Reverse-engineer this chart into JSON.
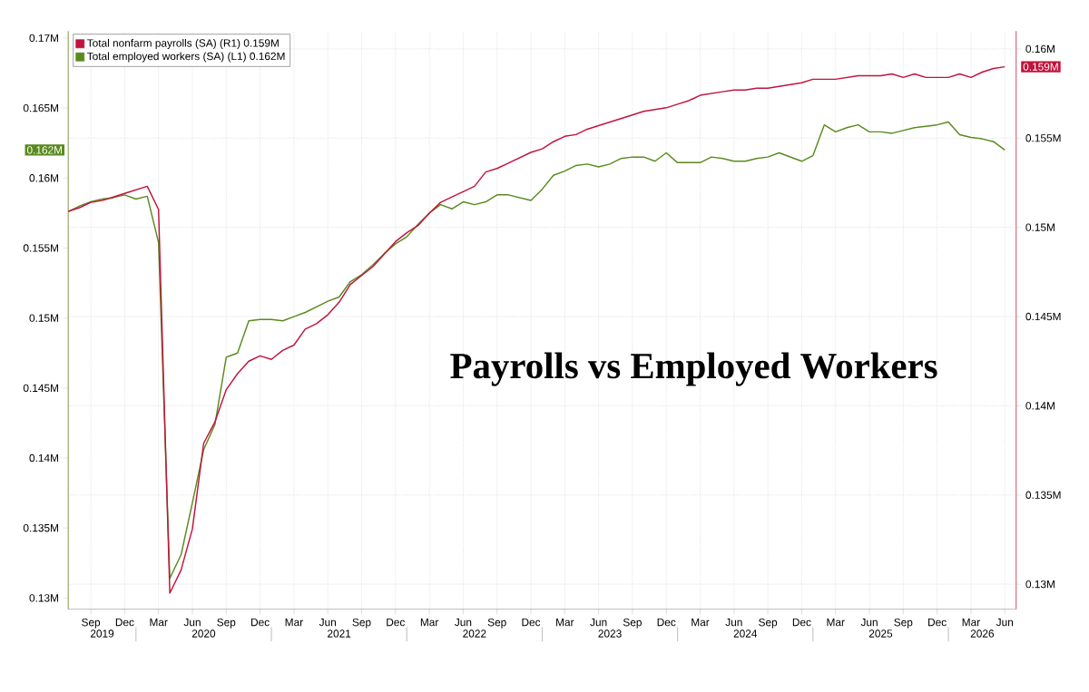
{
  "chart_data": {
    "type": "line",
    "title": "Payrolls vs Employed Workers",
    "x": [
      "2019-07",
      "2019-08",
      "2019-09",
      "2019-10",
      "2019-11",
      "2019-12",
      "2020-01",
      "2020-02",
      "2020-03",
      "2020-04",
      "2020-05",
      "2020-06",
      "2020-07",
      "2020-08",
      "2020-09",
      "2020-10",
      "2020-11",
      "2020-12",
      "2021-01",
      "2021-02",
      "2021-03",
      "2021-04",
      "2021-05",
      "2021-06",
      "2021-07",
      "2021-08",
      "2021-09",
      "2021-10",
      "2021-11",
      "2021-12",
      "2022-01",
      "2022-02",
      "2022-03",
      "2022-04",
      "2022-05",
      "2022-06",
      "2022-07",
      "2022-08",
      "2022-09",
      "2022-10",
      "2022-11",
      "2022-12",
      "2023-01",
      "2023-02",
      "2023-03",
      "2023-04",
      "2023-05",
      "2023-06",
      "2023-07",
      "2023-08",
      "2023-09",
      "2023-10",
      "2023-11",
      "2023-12",
      "2024-01",
      "2024-02",
      "2024-03",
      "2024-04",
      "2024-05",
      "2024-06",
      "2024-07",
      "2024-08",
      "2024-09",
      "2024-10",
      "2024-11",
      "2024-12",
      "2025-01",
      "2025-02",
      "2025-03",
      "2025-04",
      "2025-05",
      "2025-06",
      "2025-07",
      "2025-08",
      "2025-09",
      "2025-10",
      "2025-11",
      "2025-12",
      "2026-01",
      "2026-02",
      "2026-03",
      "2026-04",
      "2026-05",
      "2026-06"
    ],
    "series": [
      {
        "name": "Total nonfarm payrolls (SA) (R1) 0.159M",
        "color": "#c0143c",
        "axis": "y2",
        "values": [
          0.1509,
          0.1511,
          0.1514,
          0.1515,
          0.1517,
          0.1519,
          0.1521,
          0.1523,
          0.151,
          0.1295,
          0.1308,
          0.1331,
          0.1379,
          0.1391,
          0.1409,
          0.1418,
          0.1425,
          0.1428,
          0.1426,
          0.1431,
          0.1434,
          0.1443,
          0.1446,
          0.1451,
          0.1458,
          0.1468,
          0.1473,
          0.1478,
          0.1485,
          0.1492,
          0.1497,
          0.1501,
          0.1508,
          0.1514,
          0.1517,
          0.152,
          0.1523,
          0.1531,
          0.1533,
          0.1536,
          0.1539,
          0.1542,
          0.1544,
          0.1548,
          0.1551,
          0.1552,
          0.1555,
          0.1557,
          0.1559,
          0.1561,
          0.1563,
          0.1565,
          0.1566,
          0.1567,
          0.1569,
          0.1571,
          0.1574,
          0.1575,
          0.1576,
          0.1577,
          0.1577,
          0.1578,
          0.1578,
          0.1579,
          0.158,
          0.1581,
          0.1583,
          0.1583,
          0.1583,
          0.1584,
          0.1585,
          0.1585,
          0.1585,
          0.1586,
          0.1584,
          0.1586,
          0.1584,
          0.1584,
          0.1584,
          0.1586,
          0.1584,
          0.1587,
          0.1589,
          0.159
        ],
        "value_labels": [
          null,
          null,
          null,
          null,
          null,
          null,
          null,
          null,
          null,
          null,
          null,
          null,
          null,
          null,
          null,
          null,
          null,
          null,
          null,
          null,
          null,
          null,
          null,
          null,
          null,
          null,
          null,
          null,
          null,
          null,
          null,
          null,
          null,
          null,
          null,
          null,
          null,
          null,
          null,
          null,
          null,
          null,
          null,
          null,
          null,
          null,
          null,
          null,
          null,
          null,
          null,
          null,
          null,
          null,
          null,
          null,
          null,
          null,
          null,
          null,
          null,
          null,
          null,
          null,
          null,
          null,
          null,
          null,
          null,
          null,
          null,
          null,
          null,
          null,
          null,
          null,
          null,
          null,
          null,
          null,
          null,
          null,
          null,
          "0.159M"
        ]
      },
      {
        "name": "Total employed workers (SA) (L1) 0.162M",
        "color": "#5a8a1e",
        "values": [
          0.1576,
          0.158,
          0.1583,
          0.1585,
          0.1586,
          0.1588,
          0.1585,
          0.1587,
          0.1554,
          0.1314,
          0.1331,
          0.1368,
          0.1406,
          0.1424,
          0.1472,
          0.1475,
          0.1498,
          0.1499,
          0.1499,
          0.1498,
          0.1501,
          0.1504,
          0.1508,
          0.1512,
          0.1515,
          0.1526,
          0.1531,
          0.1538,
          0.1546,
          0.1553,
          0.1558,
          0.1567,
          0.1575,
          0.1581,
          0.1578,
          0.1583,
          0.1581,
          0.1583,
          0.1588,
          0.1588,
          0.1586,
          0.1584,
          0.1592,
          0.1602,
          0.1605,
          0.1609,
          0.161,
          0.1608,
          0.161,
          0.1614,
          0.1615,
          0.1615,
          0.1612,
          0.1618,
          0.1611,
          0.1611,
          0.1611,
          0.1615,
          0.1614,
          0.1612,
          0.1612,
          0.1614,
          0.1615,
          0.1618,
          0.1615,
          0.1612,
          0.1616,
          0.1638,
          0.1633,
          0.1636,
          0.1638,
          0.1633,
          0.1633,
          0.1632,
          0.1634,
          0.1636,
          0.1637,
          0.1638,
          0.164,
          0.1631,
          0.1629,
          0.1628,
          0.1626,
          0.162
        ]
      }
    ],
    "xlim": [
      "2019-07",
      "2026-07"
    ],
    "xticks": [
      {
        "value": "2019-09",
        "label": "Sep"
      },
      {
        "value": "2019-12",
        "label": "Dec"
      },
      {
        "value": "2020-03",
        "label": "Mar"
      },
      {
        "value": "2020-06",
        "label": "Jun"
      },
      {
        "value": "2020-09",
        "label": "Sep"
      },
      {
        "value": "2020-12",
        "label": "Dec"
      },
      {
        "value": "2021-03",
        "label": "Mar"
      },
      {
        "value": "2021-06",
        "label": "Jun"
      },
      {
        "value": "2021-09",
        "label": "Sep"
      },
      {
        "value": "2021-12",
        "label": "Dec"
      },
      {
        "value": "2022-03",
        "label": "Mar"
      },
      {
        "value": "2022-06",
        "label": "Jun"
      },
      {
        "value": "2022-09",
        "label": "Sep"
      },
      {
        "value": "2022-12",
        "label": "Dec"
      },
      {
        "value": "2023-03",
        "label": "Mar"
      },
      {
        "value": "2023-06",
        "label": "Jun"
      },
      {
        "value": "2023-09",
        "label": "Sep"
      },
      {
        "value": "2023-12",
        "label": "Dec"
      },
      {
        "value": "2024-03",
        "label": "Mar"
      },
      {
        "value": "2024-06",
        "label": "Jun"
      },
      {
        "value": "2024-09",
        "label": "Sep"
      },
      {
        "value": "2024-12",
        "label": "Dec"
      },
      {
        "value": "2025-03",
        "label": "Mar"
      },
      {
        "value": "2025-06",
        "label": "Jun"
      },
      {
        "value": "2025-09",
        "label": "Sep"
      },
      {
        "value": "2025-12",
        "label": "Dec"
      },
      {
        "value": "2026-03",
        "label": "Mar"
      },
      {
        "value": "2026-06",
        "label": "Jun"
      }
    ],
    "ylim": [
      0.1292,
      0.1705
    ],
    "yticks": [
      {
        "value": 0.13,
        "label": "0.13M"
      },
      {
        "value": 0.135,
        "label": "0.135M"
      },
      {
        "value": 0.14,
        "label": "0.14M"
      },
      {
        "value": 0.145,
        "label": "0.145M"
      },
      {
        "value": 0.15,
        "label": "0.15M"
      },
      {
        "value": 0.155,
        "label": "0.155M"
      },
      {
        "value": 0.16,
        "label": "0.16M"
      },
      {
        "value": 0.165,
        "label": "0.165M"
      },
      {
        "value": 0.17,
        "label": "0.17M"
      }
    ],
    "y2lim": [
      0.1286,
      0.161
    ],
    "y2ticks": [
      {
        "value": 0.13,
        "label": "0.13M"
      },
      {
        "value": 0.135,
        "label": "0.135M"
      },
      {
        "value": 0.14,
        "label": "0.14M"
      },
      {
        "value": 0.145,
        "label": "0.145M"
      },
      {
        "value": 0.15,
        "label": "0.15M"
      },
      {
        "value": 0.155,
        "label": "0.155M"
      },
      {
        "value": 0.16,
        "label": "0.16M"
      }
    ],
    "grid": true,
    "legend": "top left",
    "annotations": [
      "2019",
      "2020",
      "2021",
      "2022",
      "2023",
      "2024",
      "2025",
      "2026",
      "0.162M"
    ]
  }
}
